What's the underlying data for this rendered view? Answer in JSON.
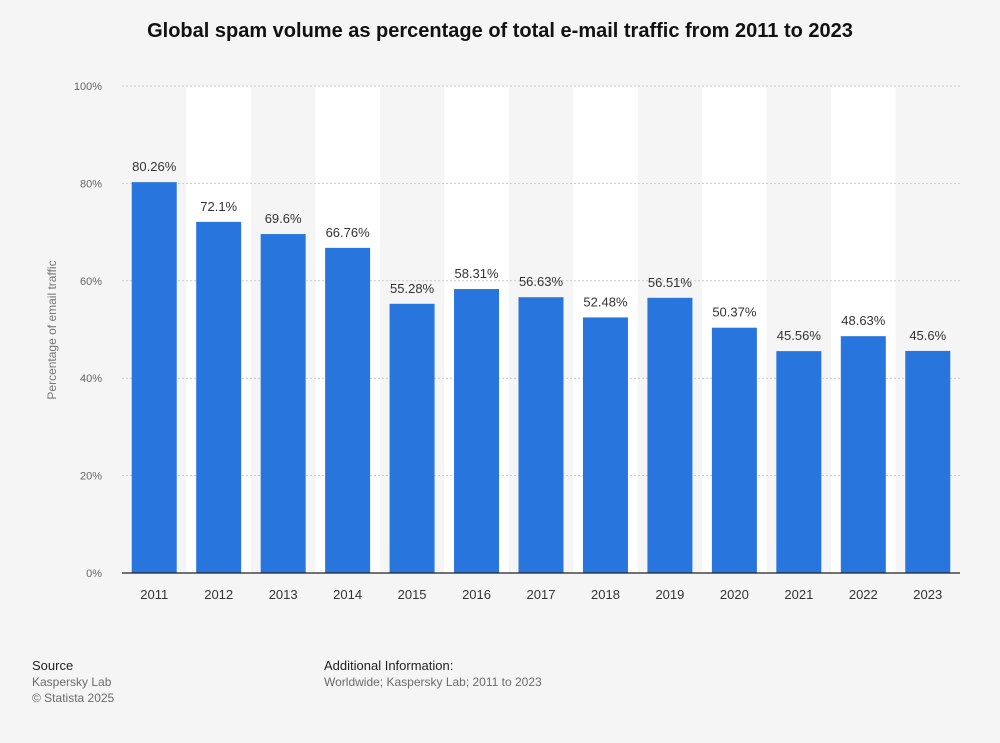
{
  "chart_data": {
    "type": "bar",
    "title": "Global spam volume as percentage of total e-mail traffic from 2011 to 2023",
    "xlabel": "",
    "ylabel": "Percentage of email traffic",
    "ylim": [
      0,
      100
    ],
    "yticks": [
      0,
      20,
      40,
      60,
      80,
      100
    ],
    "ytick_labels": [
      "0%",
      "20%",
      "40%",
      "60%",
      "80%",
      "100%"
    ],
    "grid": true,
    "categories": [
      "2011",
      "2012",
      "2013",
      "2014",
      "2015",
      "2016",
      "2017",
      "2018",
      "2019",
      "2020",
      "2021",
      "2022",
      "2023"
    ],
    "values": [
      80.26,
      72.1,
      69.6,
      66.76,
      55.28,
      58.31,
      56.63,
      52.48,
      56.51,
      50.37,
      45.56,
      48.63,
      45.6
    ],
    "value_labels": [
      "80.26%",
      "72.1%",
      "69.6%",
      "66.76%",
      "55.28%",
      "58.31%",
      "56.63%",
      "52.48%",
      "56.51%",
      "50.37%",
      "45.56%",
      "48.63%",
      "45.6%"
    ],
    "bar_color": "#2876dd"
  },
  "footer": {
    "source_heading": "Source",
    "source_lines": [
      "Kaspersky Lab",
      "© Statista 2025"
    ],
    "info_heading": "Additional Information:",
    "info_text": "Worldwide; Kaspersky Lab; 2011 to 2023"
  }
}
